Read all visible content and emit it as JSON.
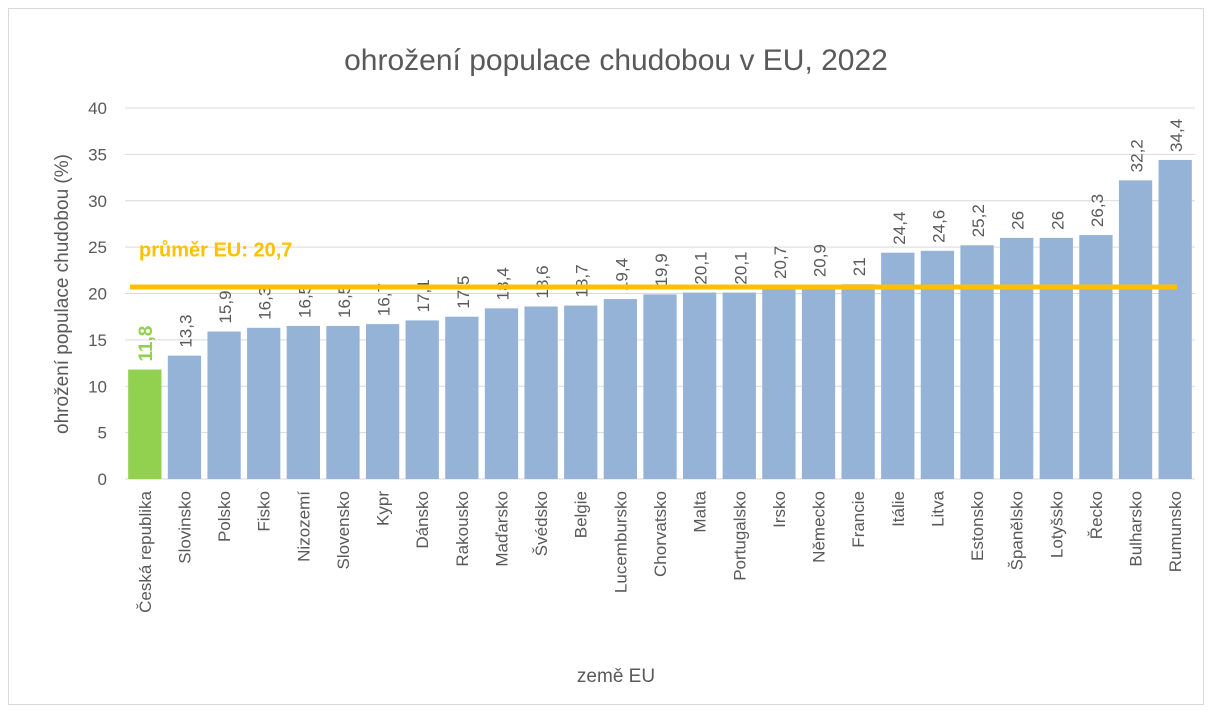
{
  "chart_data": {
    "type": "bar",
    "title": "ohrožení populace chudobou v EU, 2022",
    "x_label": "země EU",
    "y_label": "ohrožení populace chudobou (%)",
    "categories": [
      "Česká republika",
      "Slovinsko",
      "Polsko",
      "Fisko",
      "Nizozemí",
      "Slovensko",
      "Kypr",
      "Dánsko",
      "Rakousko",
      "Maďarsko",
      "Švédsko",
      "Belgie",
      "Lucembursko",
      "Chorvatsko",
      "Malta",
      "Portugalsko",
      "Irsko",
      "Německo",
      "Francie",
      "Itálie",
      "Litva",
      "Estonsko",
      "Španělsko",
      "Lotyšsko",
      "Řecko",
      "Bulharsko",
      "Rumunsko"
    ],
    "values": [
      11.8,
      13.3,
      15.9,
      16.3,
      16.5,
      16.5,
      16.7,
      17.1,
      17.5,
      18.4,
      18.6,
      18.7,
      19.4,
      19.9,
      20.1,
      20.1,
      20.7,
      20.9,
      21,
      24.4,
      24.6,
      25.2,
      26,
      26,
      26.3,
      32.2,
      34.4
    ],
    "value_labels": [
      "11,8",
      "13,3",
      "15,9",
      "16,3",
      "16,5",
      "16,5",
      "16,7",
      "17,1",
      "17,5",
      "18,4",
      "18,6",
      "18,7",
      "19,4",
      "19,9",
      "20,1",
      "20,1",
      "20,7",
      "20,9",
      "21",
      "24,4",
      "24,6",
      "25,2",
      "26",
      "26",
      "26,3",
      "32,2",
      "34,4"
    ],
    "colors": [
      "#92d050",
      "#95b3d7",
      "#95b3d7",
      "#95b3d7",
      "#95b3d7",
      "#95b3d7",
      "#95b3d7",
      "#95b3d7",
      "#95b3d7",
      "#95b3d7",
      "#95b3d7",
      "#95b3d7",
      "#95b3d7",
      "#95b3d7",
      "#95b3d7",
      "#95b3d7",
      "#95b3d7",
      "#95b3d7",
      "#95b3d7",
      "#95b3d7",
      "#95b3d7",
      "#95b3d7",
      "#95b3d7",
      "#95b3d7",
      "#95b3d7",
      "#95b3d7",
      "#95b3d7"
    ],
    "average": {
      "label": "průměr EU: 20,7",
      "value": 20.7,
      "color": "#ffc000"
    },
    "ylim": [
      0,
      40
    ],
    "yticks": [
      0,
      5,
      10,
      15,
      20,
      25,
      30,
      35,
      40
    ],
    "grid": true
  }
}
